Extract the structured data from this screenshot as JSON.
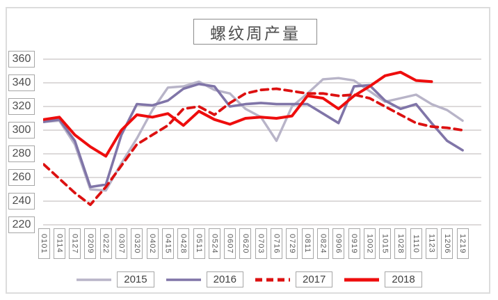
{
  "chart_data": {
    "type": "line",
    "title": "螺纹周产量",
    "categories": [
      "0101",
      "0114",
      "0127",
      "0209",
      "0222",
      "0307",
      "0320",
      "0402",
      "0415",
      "0428",
      "0511",
      "0524",
      "0607",
      "0620",
      "0703",
      "0716",
      "0729",
      "0811",
      "0824",
      "0906",
      "0919",
      "1002",
      "1015",
      "1028",
      "1110",
      "1123",
      "1206",
      "1219"
    ],
    "series": [
      {
        "name": "2015",
        "color": "#b8b4c8",
        "style": "solid",
        "values": [
          307,
          308,
          288,
          250,
          249,
          272,
          293,
          317,
          336,
          337,
          341,
          334,
          331,
          318,
          311,
          291,
          320,
          331,
          343,
          344,
          342,
          333,
          324,
          327,
          330,
          322,
          317,
          308
        ]
      },
      {
        "name": "2016",
        "color": "#8075a8",
        "style": "solid",
        "values": [
          307,
          309,
          291,
          252,
          254,
          296,
          322,
          321,
          325,
          335,
          339,
          337,
          320,
          322,
          323,
          322,
          322,
          322,
          314,
          306,
          337,
          338,
          325,
          318,
          322,
          306,
          291,
          283
        ]
      },
      {
        "name": "2017",
        "color": "#dc1111",
        "style": "dashed",
        "values": [
          271,
          259,
          247,
          237,
          252,
          270,
          288,
          296,
          304,
          318,
          320,
          313,
          323,
          331,
          334,
          335,
          333,
          331,
          331,
          329,
          330,
          327,
          320,
          313,
          306,
          303,
          302,
          300
        ]
      },
      {
        "name": "2018",
        "color": "#ee0d0d",
        "style": "solid",
        "values": [
          309,
          311,
          296,
          286,
          278,
          300,
          313,
          311,
          314,
          304,
          316,
          309,
          305,
          310,
          311,
          310,
          312,
          329,
          327,
          318,
          329,
          337,
          346,
          349,
          342,
          341,
          null,
          null
        ]
      }
    ],
    "yticks": [
      360,
      340,
      320,
      300,
      280,
      260,
      240,
      220
    ],
    "ylim": [
      220,
      360
    ],
    "ytick_step": 20,
    "grid": true,
    "legend_position": "bottom",
    "gridline_color": "#d2cece"
  }
}
